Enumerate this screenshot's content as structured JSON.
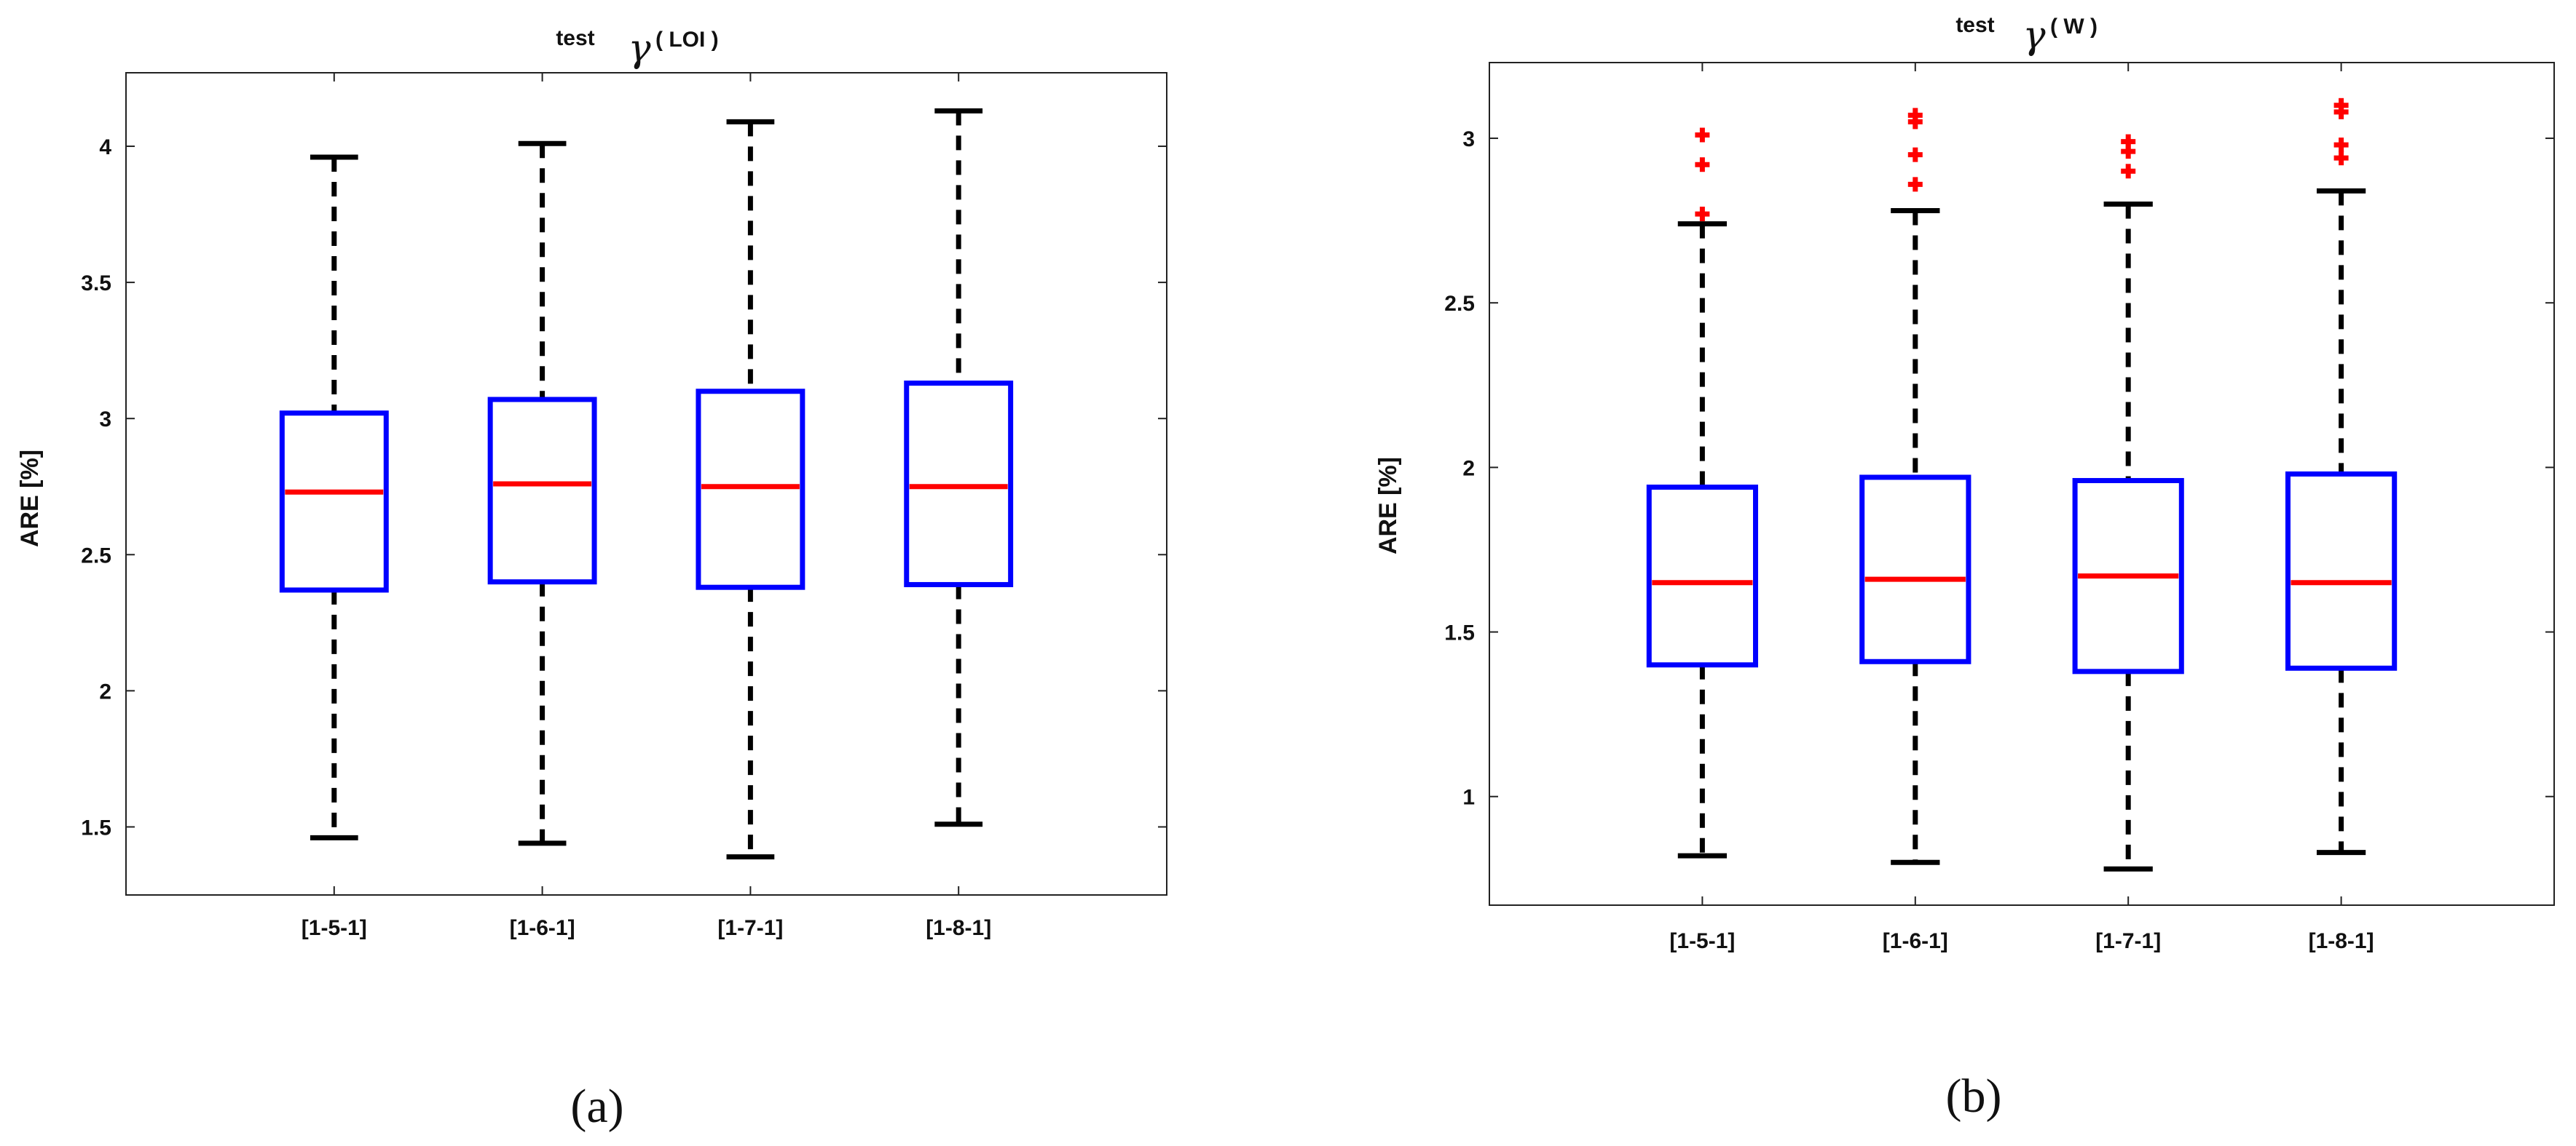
{
  "chart_data": [
    {
      "type": "box",
      "title": {
        "prefix": "test",
        "symbol": "γ",
        "superscript": "( LOI )"
      },
      "ylabel": "ARE [%]",
      "xlabel": "",
      "ylim": [
        1.25,
        4.27
      ],
      "yticks": [
        1.5,
        2,
        2.5,
        3,
        3.5,
        4
      ],
      "ytick_labels": [
        "1.5",
        "2",
        "2.5",
        "3",
        "3.5",
        "4"
      ],
      "categories": [
        "[1-5-1]",
        "[1-6-1]",
        "[1-7-1]",
        "[1-8-1]"
      ],
      "boxes": [
        {
          "whisker_low": 1.46,
          "q1": 2.37,
          "median": 2.73,
          "q3": 3.02,
          "whisker_high": 3.96,
          "outliers": []
        },
        {
          "whisker_low": 1.44,
          "q1": 2.4,
          "median": 2.76,
          "q3": 3.07,
          "whisker_high": 4.01,
          "outliers": []
        },
        {
          "whisker_low": 1.39,
          "q1": 2.38,
          "median": 2.75,
          "q3": 3.1,
          "whisker_high": 4.09,
          "outliers": []
        },
        {
          "whisker_low": 1.51,
          "q1": 2.39,
          "median": 2.75,
          "q3": 3.13,
          "whisker_high": 4.13,
          "outliers": []
        }
      ],
      "caption": "(a)",
      "colors": {
        "box": "#0000ff",
        "median": "#ff0000",
        "whisker": "#000000",
        "outlier": "#ff0000"
      }
    },
    {
      "type": "box",
      "title": {
        "prefix": "test",
        "symbol": "γ",
        "superscript": "( W )"
      },
      "ylabel": "ARE [%]",
      "xlabel": "",
      "ylim": [
        0.67,
        3.23
      ],
      "yticks": [
        1,
        1.5,
        2,
        2.5,
        3
      ],
      "ytick_labels": [
        "1",
        "1.5",
        "2",
        "2.5",
        "3"
      ],
      "categories": [
        "[1-5-1]",
        "[1-6-1]",
        "[1-7-1]",
        "[1-8-1]"
      ],
      "boxes": [
        {
          "whisker_low": 0.82,
          "q1": 1.4,
          "median": 1.65,
          "q3": 1.94,
          "whisker_high": 2.74,
          "outliers": [
            2.77,
            2.92,
            3.01
          ]
        },
        {
          "whisker_low": 0.8,
          "q1": 1.41,
          "median": 1.66,
          "q3": 1.97,
          "whisker_high": 2.78,
          "outliers": [
            2.86,
            2.95,
            3.05,
            3.07
          ]
        },
        {
          "whisker_low": 0.78,
          "q1": 1.38,
          "median": 1.67,
          "q3": 1.96,
          "whisker_high": 2.8,
          "outliers": [
            2.9,
            2.96,
            2.99
          ]
        },
        {
          "whisker_low": 0.83,
          "q1": 1.39,
          "median": 1.65,
          "q3": 1.98,
          "whisker_high": 2.84,
          "outliers": [
            2.94,
            2.98,
            3.08,
            3.1
          ]
        }
      ],
      "caption": "(b)",
      "colors": {
        "box": "#0000ff",
        "median": "#ff0000",
        "whisker": "#000000",
        "outlier": "#ff0000"
      }
    }
  ]
}
